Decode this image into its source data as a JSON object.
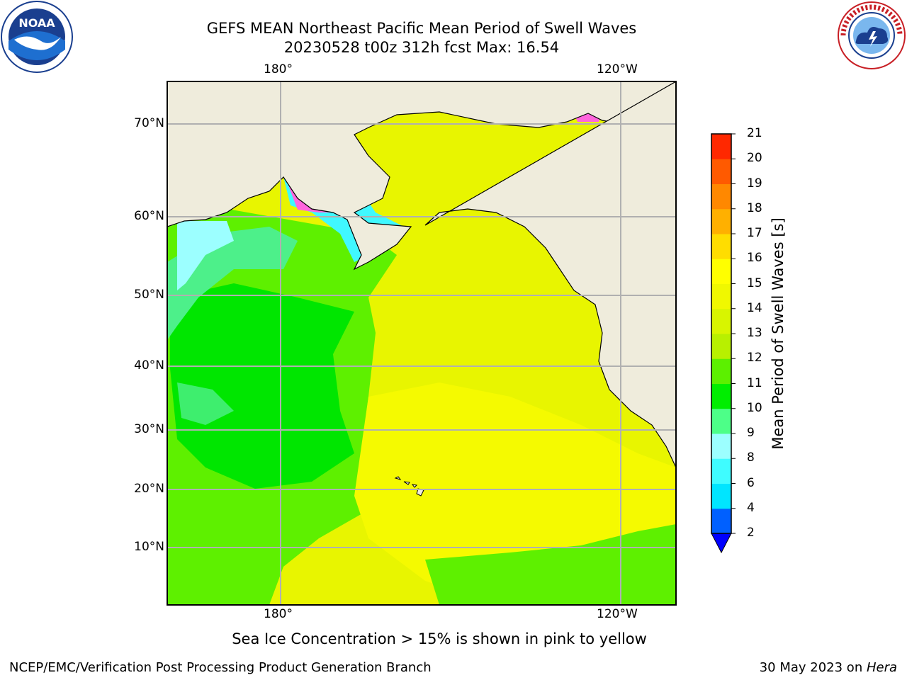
{
  "header": {
    "title_line1": "GEFS MEAN Northeast Pacific Mean Period of Swell Waves",
    "title_line2": "20230528 t00z 312h fcst   Max: 16.54"
  },
  "logos": {
    "left": {
      "icon": "noaa-logo",
      "text": "NOAA"
    },
    "right": {
      "icon": "national-weather-service-logo"
    }
  },
  "map": {
    "lon_labels_top": [
      "180°",
      "120°W"
    ],
    "lon_labels_bottom": [
      "180°",
      "120°W"
    ],
    "lat_labels": [
      "70°N",
      "60°N",
      "50°N",
      "40°N",
      "30°N",
      "20°N",
      "10°N"
    ],
    "land_color": "#efecdc",
    "grid_color": "#b0b0b0"
  },
  "colorbar": {
    "label": "Mean Period of Swell Waves [s]",
    "ticks": [
      "2",
      "4",
      "6",
      "8",
      "9",
      "10",
      "11",
      "12",
      "13",
      "14",
      "15",
      "16",
      "17",
      "18",
      "19",
      "20",
      "21"
    ],
    "colors": [
      "#0060ff",
      "#00e5ff",
      "#3ffcff",
      "#9cffff",
      "#4dff88",
      "#00ee00",
      "#5cf000",
      "#b8f000",
      "#d8f500",
      "#f0f800",
      "#ffff00",
      "#ffdd00",
      "#ffb000",
      "#ff8800",
      "#ff5a00",
      "#ff2800",
      "#ff0000"
    ],
    "under_color": "#0000ff"
  },
  "note": "Sea Ice Concentration > 15% is shown in pink to yellow",
  "footer": {
    "left": "NCEP/EMC/Verification Post Processing Product Generation Branch",
    "right_prefix": "30 May 2023 on ",
    "right_host": "Hera"
  }
}
